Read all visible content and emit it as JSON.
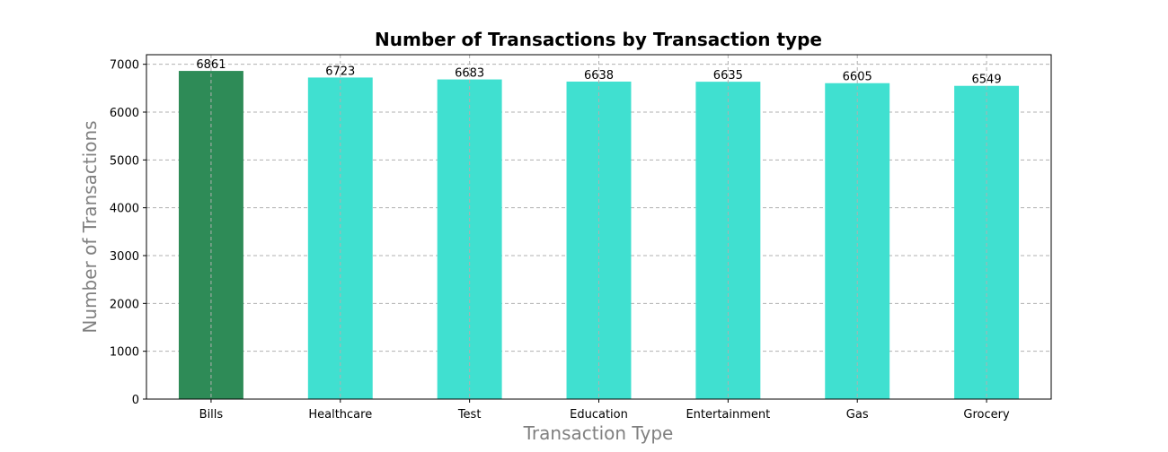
{
  "chart_data": {
    "type": "bar",
    "title": "Number of Transactions by Transaction type",
    "xlabel": "Transaction Type",
    "ylabel": "Number of Transactions",
    "categories": [
      "Bills",
      "Healthcare",
      "Test",
      "Education",
      "Entertainment",
      "Gas",
      "Grocery"
    ],
    "values": [
      6861,
      6723,
      6683,
      6638,
      6635,
      6605,
      6549
    ],
    "data_labels": [
      "6861",
      "6723",
      "6683",
      "6638",
      "6635",
      "6605",
      "6549"
    ],
    "ylim": [
      0,
      7200
    ],
    "yticks": [
      0,
      1000,
      2000,
      3000,
      4000,
      5000,
      6000,
      7000
    ],
    "ytick_labels": [
      "0",
      "1000",
      "2000",
      "3000",
      "4000",
      "5000",
      "6000",
      "7000"
    ],
    "grid": true,
    "colors": {
      "highlight": "#2e8b57",
      "default": "#40e0d0",
      "grid": "#b0b0b0",
      "axis_label": "#808080"
    },
    "highlight_index": 0
  }
}
